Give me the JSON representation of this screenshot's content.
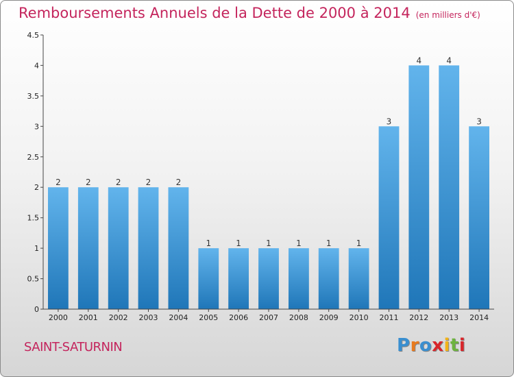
{
  "title": "Remboursements Annuels de la Dette de 2000 à 2014",
  "unit": "(en milliers d'€)",
  "commune": "SAINT-SATURNIN",
  "logo": {
    "text": "Proxiti",
    "colors": [
      "#3a8fd0",
      "#e87a1e",
      "#3a8fd0",
      "#d8262b",
      "#f2b318",
      "#6db33f",
      "#d8262b"
    ]
  },
  "colors": {
    "bar_top": "#62b4ec",
    "bar_bottom": "#1f76b8",
    "axis": "#444444",
    "title": "#c4245c"
  },
  "chart_data": {
    "type": "bar",
    "title": "Remboursements Annuels de la Dette de 2000 à 2014",
    "xlabel": "",
    "ylabel": "en milliers d'€",
    "categories": [
      "2000",
      "2001",
      "2002",
      "2003",
      "2004",
      "2005",
      "2006",
      "2007",
      "2008",
      "2009",
      "2010",
      "2011",
      "2012",
      "2013",
      "2014"
    ],
    "values": [
      2,
      2,
      2,
      2,
      2,
      1,
      1,
      1,
      1,
      1,
      1,
      3,
      4,
      4,
      3
    ],
    "labels": [
      "2",
      "2",
      "2",
      "2",
      "2",
      "1",
      "1",
      "1",
      "1",
      "1",
      "1",
      "3",
      "4",
      "4",
      "3"
    ],
    "ylim": [
      0,
      4.5
    ],
    "yticks": [
      0,
      0.5,
      1,
      1.5,
      2,
      2.5,
      3,
      3.5,
      4,
      4.5
    ],
    "ytick_labels": [
      "0",
      "0.5",
      "1",
      "1.5",
      "2",
      "2.5",
      "3",
      "3.5",
      "4",
      "4.5"
    ]
  }
}
